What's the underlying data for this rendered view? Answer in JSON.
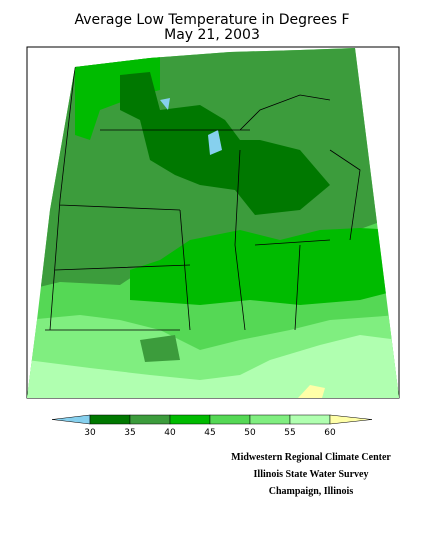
{
  "title": [
    "Average Low Temperature in Degrees F",
    "May 21, 2003"
  ],
  "legend": {
    "ticks": [
      30,
      35,
      40,
      45,
      50,
      55,
      60
    ],
    "colors": [
      "#86d0ee",
      "#007800",
      "#3c9c3c",
      "#00bb00",
      "#55d855",
      "#80ee80",
      "#b0ffb0",
      "#ffffa8"
    ]
  },
  "credits": [
    "Midwestern Regional Climate Center",
    "Illinois State Water Survey",
    "Champaign, Illinois"
  ]
}
